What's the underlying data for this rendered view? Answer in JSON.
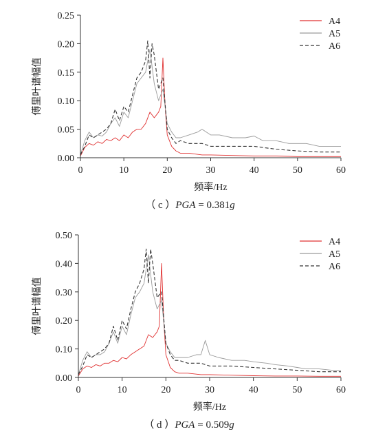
{
  "colors": {
    "A4": "#e03030",
    "A5": "#9a9a9a",
    "A6": "#333333",
    "axis": "#333333"
  },
  "chart_data": [
    {
      "type": "line",
      "xlabel": "频率/Hz",
      "ylabel": "傅里叶谱幅值",
      "xlim": [
        0,
        60
      ],
      "ylim": [
        0,
        0.25
      ],
      "xticks": [
        "0",
        "10",
        "20",
        "30",
        "40",
        "50",
        "60"
      ],
      "yticks": [
        "0.00",
        "0.05",
        "0.10",
        "0.15",
        "0.20",
        "0.25"
      ],
      "legend_position": "top-right",
      "caption_prefix": "（ c ）",
      "caption_var": "PGA",
      "caption_mid": " = 0.381",
      "caption_unit": "g",
      "series": [
        {
          "name": "A4",
          "style": "solid",
          "x": [
            0,
            1,
            2,
            3,
            4,
            5,
            6,
            7,
            8,
            9,
            10,
            11,
            12,
            13,
            14,
            15,
            16,
            17,
            18,
            18.5,
            19,
            19.5,
            20,
            21,
            22,
            23,
            25,
            28,
            30,
            35,
            40,
            45,
            50,
            55,
            60
          ],
          "y": [
            0.003,
            0.018,
            0.025,
            0.022,
            0.028,
            0.025,
            0.032,
            0.03,
            0.035,
            0.03,
            0.04,
            0.035,
            0.045,
            0.05,
            0.05,
            0.06,
            0.08,
            0.07,
            0.08,
            0.09,
            0.175,
            0.09,
            0.04,
            0.02,
            0.012,
            0.008,
            0.008,
            0.005,
            0.005,
            0.004,
            0.003,
            0.003,
            0.002,
            0.002,
            0.002
          ]
        },
        {
          "name": "A5",
          "style": "solid",
          "x": [
            0,
            1,
            2,
            3,
            4,
            5,
            6,
            7,
            8,
            9,
            10,
            11,
            12,
            13,
            14,
            15,
            16,
            17,
            18,
            19,
            20,
            21,
            22,
            23,
            25,
            27,
            28,
            30,
            32,
            35,
            38,
            40,
            42,
            45,
            48,
            50,
            52,
            55,
            58,
            60
          ],
          "y": [
            0.005,
            0.03,
            0.045,
            0.035,
            0.04,
            0.038,
            0.045,
            0.06,
            0.07,
            0.055,
            0.08,
            0.07,
            0.1,
            0.13,
            0.14,
            0.15,
            0.19,
            0.13,
            0.1,
            0.12,
            0.06,
            0.045,
            0.035,
            0.035,
            0.04,
            0.045,
            0.05,
            0.04,
            0.04,
            0.035,
            0.035,
            0.038,
            0.03,
            0.03,
            0.025,
            0.025,
            0.025,
            0.02,
            0.02,
            0.02
          ]
        },
        {
          "name": "A6",
          "style": "dashed",
          "x": [
            0,
            1,
            2,
            3,
            4,
            5,
            6,
            7,
            8,
            9,
            10,
            11,
            12,
            13,
            14,
            15,
            15.5,
            16,
            16.5,
            17,
            18,
            19,
            20,
            21,
            22,
            23,
            25,
            28,
            30,
            35,
            40,
            45,
            50,
            55,
            60
          ],
          "y": [
            0.005,
            0.02,
            0.04,
            0.035,
            0.04,
            0.045,
            0.05,
            0.06,
            0.085,
            0.065,
            0.09,
            0.08,
            0.11,
            0.14,
            0.15,
            0.17,
            0.205,
            0.14,
            0.2,
            0.18,
            0.12,
            0.14,
            0.05,
            0.035,
            0.025,
            0.03,
            0.025,
            0.025,
            0.02,
            0.02,
            0.02,
            0.015,
            0.012,
            0.01,
            0.01
          ]
        }
      ]
    },
    {
      "type": "line",
      "xlabel": "频率/Hz",
      "ylabel": "傅里叶谱幅值",
      "xlim": [
        0,
        60
      ],
      "ylim": [
        0,
        0.5
      ],
      "xticks": [
        "0",
        "10",
        "20",
        "30",
        "40",
        "50",
        "60"
      ],
      "yticks": [
        "0.00",
        "0.10",
        "0.20",
        "0.30",
        "0.40",
        "0.50"
      ],
      "legend_position": "top-right",
      "caption_prefix": "（ d ）",
      "caption_var": "PGA",
      "caption_mid": " = 0.509",
      "caption_unit": "g",
      "series": [
        {
          "name": "A4",
          "style": "solid",
          "x": [
            0,
            1,
            2,
            3,
            4,
            5,
            6,
            7,
            8,
            9,
            10,
            11,
            12,
            13,
            14,
            15,
            16,
            17,
            18,
            18.5,
            19,
            19.5,
            20,
            21,
            22,
            23,
            25,
            28,
            30,
            35,
            40,
            45,
            50,
            55,
            60
          ],
          "y": [
            0.005,
            0.03,
            0.04,
            0.035,
            0.045,
            0.04,
            0.05,
            0.05,
            0.06,
            0.055,
            0.07,
            0.065,
            0.08,
            0.09,
            0.1,
            0.11,
            0.15,
            0.14,
            0.16,
            0.18,
            0.4,
            0.2,
            0.08,
            0.035,
            0.02,
            0.015,
            0.015,
            0.01,
            0.01,
            0.008,
            0.006,
            0.005,
            0.005,
            0.004,
            0.004
          ]
        },
        {
          "name": "A5",
          "style": "solid",
          "x": [
            0,
            1,
            2,
            3,
            4,
            5,
            6,
            7,
            8,
            9,
            10,
            11,
            12,
            13,
            14,
            15,
            16,
            17,
            18,
            19,
            20,
            21,
            22,
            23,
            25,
            27,
            28,
            29,
            30,
            32,
            35,
            38,
            40,
            43,
            45,
            48,
            50,
            52,
            55,
            58,
            60
          ],
          "y": [
            0.01,
            0.06,
            0.09,
            0.07,
            0.08,
            0.08,
            0.09,
            0.12,
            0.16,
            0.12,
            0.18,
            0.15,
            0.22,
            0.28,
            0.3,
            0.33,
            0.43,
            0.3,
            0.24,
            0.27,
            0.12,
            0.09,
            0.07,
            0.07,
            0.07,
            0.08,
            0.08,
            0.13,
            0.08,
            0.07,
            0.06,
            0.06,
            0.055,
            0.05,
            0.045,
            0.04,
            0.035,
            0.03,
            0.03,
            0.025,
            0.025
          ]
        },
        {
          "name": "A6",
          "style": "dashed",
          "x": [
            0,
            1,
            2,
            3,
            4,
            5,
            6,
            7,
            8,
            9,
            10,
            11,
            12,
            13,
            14,
            15,
            15.5,
            16,
            16.5,
            17,
            18,
            19,
            20,
            21,
            22,
            23,
            25,
            28,
            30,
            35,
            40,
            45,
            50,
            55,
            60
          ],
          "y": [
            0.01,
            0.04,
            0.08,
            0.07,
            0.08,
            0.09,
            0.1,
            0.12,
            0.18,
            0.13,
            0.2,
            0.17,
            0.24,
            0.3,
            0.33,
            0.38,
            0.45,
            0.33,
            0.45,
            0.4,
            0.28,
            0.3,
            0.12,
            0.08,
            0.06,
            0.06,
            0.05,
            0.05,
            0.04,
            0.04,
            0.035,
            0.03,
            0.025,
            0.02,
            0.02
          ]
        }
      ]
    }
  ]
}
